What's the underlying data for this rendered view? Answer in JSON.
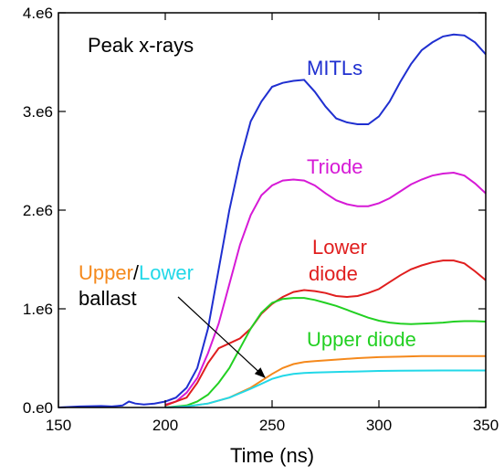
{
  "chart_data": {
    "type": "line",
    "title": "Peak x-rays",
    "xlabel": "Time (ns)",
    "ylabel": "",
    "xlim": [
      150,
      350
    ],
    "ylim": [
      0,
      4000000
    ],
    "grid": false,
    "x_ticks": [
      150,
      200,
      250,
      300,
      350
    ],
    "x_tick_labels": [
      "150",
      "200",
      "250",
      "300",
      "350"
    ],
    "y_ticks": [
      0,
      1000000,
      2000000,
      3000000,
      4000000
    ],
    "y_tick_labels": [
      "0.e0",
      "1.e6",
      "2.e6",
      "3.e6",
      "4.e6"
    ],
    "colors": {
      "mitls": "#1f2fd0",
      "triode": "#d61ad6",
      "lower_diode": "#e01e1e",
      "upper_diode": "#22d022",
      "upper_ballast": "#f5891c",
      "lower_ballast": "#22d8e8"
    },
    "series": [
      {
        "key": "mitls",
        "label": "MITLs",
        "x": [
          150,
          160,
          170,
          175,
          180,
          183,
          186,
          190,
          195,
          200,
          205,
          210,
          215,
          220,
          225,
          230,
          235,
          240,
          245,
          250,
          255,
          260,
          265,
          270,
          275,
          280,
          285,
          290,
          295,
          300,
          305,
          310,
          315,
          320,
          325,
          330,
          335,
          340,
          345,
          350
        ],
        "y": [
          0,
          10000,
          15000,
          10000,
          20000,
          60000,
          40000,
          30000,
          40000,
          60000,
          100000,
          200000,
          400000,
          800000,
          1400000,
          2000000,
          2500000,
          2900000,
          3100000,
          3250000,
          3290000,
          3310000,
          3320000,
          3200000,
          3050000,
          2930000,
          2890000,
          2870000,
          2870000,
          2950000,
          3100000,
          3300000,
          3480000,
          3620000,
          3700000,
          3760000,
          3780000,
          3770000,
          3700000,
          3580000
        ]
      },
      {
        "key": "triode",
        "label": "Triode",
        "x": [
          200,
          205,
          210,
          215,
          220,
          225,
          230,
          235,
          240,
          245,
          250,
          255,
          260,
          265,
          270,
          275,
          280,
          285,
          290,
          295,
          300,
          305,
          310,
          315,
          320,
          325,
          330,
          335,
          340,
          345,
          350
        ],
        "y": [
          30000,
          60000,
          150000,
          300000,
          550000,
          850000,
          1250000,
          1650000,
          1950000,
          2150000,
          2250000,
          2300000,
          2310000,
          2300000,
          2250000,
          2170000,
          2100000,
          2060000,
          2040000,
          2040000,
          2070000,
          2120000,
          2190000,
          2260000,
          2310000,
          2350000,
          2370000,
          2380000,
          2350000,
          2270000,
          2170000
        ]
      },
      {
        "key": "lower_diode",
        "label": "Lower diode",
        "x": [
          200,
          210,
          215,
          220,
          225,
          230,
          235,
          240,
          245,
          250,
          255,
          260,
          265,
          270,
          275,
          280,
          285,
          290,
          295,
          300,
          305,
          310,
          315,
          320,
          325,
          330,
          335,
          340,
          345,
          350
        ],
        "y": [
          20000,
          100000,
          250000,
          450000,
          600000,
          650000,
          700000,
          800000,
          950000,
          1050000,
          1120000,
          1170000,
          1190000,
          1180000,
          1160000,
          1130000,
          1120000,
          1130000,
          1160000,
          1200000,
          1270000,
          1340000,
          1400000,
          1440000,
          1470000,
          1490000,
          1490000,
          1460000,
          1380000,
          1290000
        ]
      },
      {
        "key": "upper_diode",
        "label": "Upper diode",
        "x": [
          200,
          210,
          215,
          220,
          225,
          230,
          235,
          240,
          245,
          250,
          255,
          260,
          265,
          270,
          275,
          280,
          285,
          290,
          295,
          300,
          305,
          310,
          315,
          320,
          325,
          330,
          335,
          340,
          345,
          350
        ],
        "y": [
          0,
          20000,
          60000,
          130000,
          250000,
          400000,
          600000,
          800000,
          960000,
          1060000,
          1100000,
          1110000,
          1110000,
          1090000,
          1060000,
          1030000,
          990000,
          950000,
          910000,
          880000,
          860000,
          850000,
          845000,
          850000,
          855000,
          860000,
          870000,
          875000,
          875000,
          870000
        ]
      },
      {
        "key": "upper_ballast",
        "label": "Upper",
        "x": [
          200,
          210,
          220,
          230,
          240,
          245,
          250,
          255,
          260,
          265,
          270,
          280,
          290,
          300,
          310,
          320,
          330,
          340,
          350
        ],
        "y": [
          0,
          10000,
          40000,
          100000,
          200000,
          270000,
          340000,
          400000,
          440000,
          460000,
          470000,
          485000,
          500000,
          510000,
          515000,
          520000,
          520000,
          520000,
          520000
        ]
      },
      {
        "key": "lower_ballast",
        "label": "Lower",
        "x": [
          200,
          210,
          220,
          230,
          240,
          245,
          250,
          255,
          260,
          265,
          270,
          280,
          290,
          300,
          310,
          320,
          330,
          340,
          350
        ],
        "y": [
          0,
          10000,
          40000,
          100000,
          190000,
          240000,
          290000,
          320000,
          340000,
          350000,
          355000,
          360000,
          365000,
          370000,
          372000,
          374000,
          375000,
          375000,
          375000
        ]
      }
    ],
    "annotations": {
      "upper": "Upper",
      "slash": "/",
      "lower": "Lower",
      "ballast": "ballast"
    }
  }
}
